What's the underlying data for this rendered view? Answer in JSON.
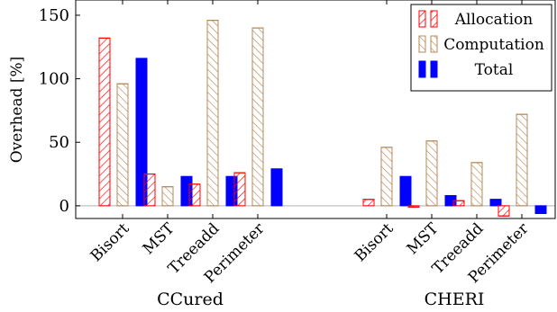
{
  "chart_data": {
    "type": "bar",
    "ylabel": "Overhead [%]",
    "ylim": [
      -10,
      162
    ],
    "yticks": [
      0,
      50,
      100,
      150
    ],
    "grid": false,
    "legend_position": "top-right",
    "groups": [
      {
        "name": "CCured",
        "categories": [
          "Bisort",
          "MST",
          "Treeadd",
          "Perimeter"
        ],
        "series": [
          {
            "name": "Allocation",
            "values": [
              132,
              25,
              17,
              26
            ]
          },
          {
            "name": "Computation",
            "values": [
              96,
              15,
              146,
              140
            ]
          },
          {
            "name": "Total",
            "values": [
              116,
              23,
              23,
              29
            ]
          }
        ]
      },
      {
        "name": "CHERI",
        "categories": [
          "Bisort",
          "MST",
          "Treeadd",
          "Perimeter"
        ],
        "series": [
          {
            "name": "Allocation",
            "values": [
              5,
              -1,
              4,
              -8
            ]
          },
          {
            "name": "Computation",
            "values": [
              46,
              51,
              34,
              72
            ]
          },
          {
            "name": "Total",
            "values": [
              23,
              8,
              5,
              -6
            ]
          }
        ]
      }
    ],
    "legend": [
      {
        "name": "Allocation",
        "pattern": "hatch-red"
      },
      {
        "name": "Computation",
        "pattern": "hatch-brown"
      },
      {
        "name": "Total",
        "pattern": "solid-blue"
      }
    ],
    "colors": {
      "allocation": "#ff0000",
      "computation": "#b5895a",
      "total": "#0000ff",
      "zero_line": "#c0c0c0"
    }
  }
}
